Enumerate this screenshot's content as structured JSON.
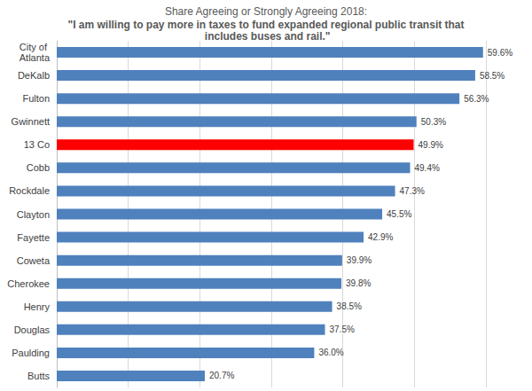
{
  "chart_data": {
    "type": "bar",
    "title": "Share Agreeing or Strongly Agreeing 2018:",
    "subtitle": "\"I am willing to pay more in taxes to fund expanded regional public transit that includes buses and rail.\"",
    "orientation": "horizontal",
    "categories": [
      "City of Atlanta",
      "DeKalb",
      "Fulton",
      "Gwinnett",
      "13 Co",
      "Cobb",
      "Rockdale",
      "Clayton",
      "Fayette",
      "Coweta",
      "Cherokee",
      "Henry",
      "Douglas",
      "Paulding",
      "Butts"
    ],
    "values": [
      59.6,
      58.5,
      56.3,
      50.3,
      49.9,
      49.4,
      47.3,
      45.5,
      42.9,
      39.9,
      39.8,
      38.5,
      37.5,
      36.0,
      20.7
    ],
    "value_labels": [
      "59.6%",
      "58.5%",
      "56.3%",
      "50.3%",
      "49.9%",
      "49.4%",
      "47.3%",
      "45.5%",
      "42.9%",
      "39.9%",
      "39.8%",
      "38.5%",
      "37.5%",
      "36.0%",
      "20.7%"
    ],
    "colors": [
      "#4f81bd",
      "#4f81bd",
      "#4f81bd",
      "#4f81bd",
      "#ff0000",
      "#4f81bd",
      "#4f81bd",
      "#4f81bd",
      "#4f81bd",
      "#4f81bd",
      "#4f81bd",
      "#4f81bd",
      "#4f81bd",
      "#4f81bd",
      "#4f81bd"
    ],
    "xlim": [
      0,
      60
    ],
    "xticks": [
      0,
      10,
      20,
      30,
      40,
      50,
      60
    ],
    "grid": true,
    "data_labels": true,
    "tick_labels": "y"
  }
}
